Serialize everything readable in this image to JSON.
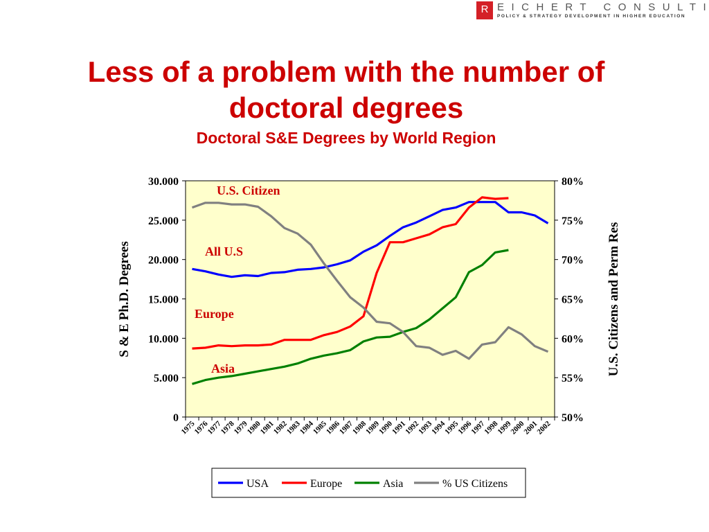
{
  "logo": {
    "initial": "R",
    "name": "EICHERT CONSULTING",
    "tagline": "POLICY & STRATEGY DEVELOPMENT IN HIGHER EDUCATION"
  },
  "slide": {
    "title_line1": "Less of a problem with the number of",
    "title_line2": "doctoral degrees"
  },
  "chart_data": {
    "type": "line",
    "title": "Doctoral S&E Degrees by World Region",
    "ylabel": "S & E Ph.D. Degrees",
    "y2label": "U.S. Citizens and Perm Res",
    "ylim": [
      0,
      30000
    ],
    "y2lim": [
      0.5,
      0.8
    ],
    "yticks": [
      "0",
      "5.000",
      "10.000",
      "15.000",
      "20.000",
      "25.000",
      "30.000"
    ],
    "y2ticks": [
      "50%",
      "55%",
      "60%",
      "65%",
      "70%",
      "75%",
      "80%"
    ],
    "x": [
      "1975",
      "1976",
      "1977",
      "1978",
      "1979",
      "1980",
      "1981",
      "1982",
      "1983",
      "1984",
      "1985",
      "1986",
      "1987",
      "1988",
      "1989",
      "1990",
      "1991",
      "1992",
      "1993",
      "1994",
      "1995",
      "1996",
      "1997",
      "1998",
      "1999",
      "2000",
      "2001",
      "2002"
    ],
    "grid": false,
    "legend": "bottom",
    "series": [
      {
        "name": "USA",
        "color": "#0000ff",
        "axis": "left",
        "values": [
          18800,
          18500,
          18100,
          17800,
          18000,
          17900,
          18300,
          18400,
          18700,
          18800,
          19000,
          19400,
          19900,
          21000,
          21800,
          23000,
          24100,
          24700,
          25500,
          26300,
          26600,
          27300,
          27300,
          27300,
          26000,
          26000,
          25600,
          24600
        ]
      },
      {
        "name": "Europe",
        "color": "#ff0000",
        "axis": "left",
        "values": [
          8700,
          8800,
          9100,
          9000,
          9100,
          9100,
          9200,
          9800,
          9800,
          9800,
          10400,
          10800,
          11500,
          12800,
          18300,
          22200,
          22200,
          22700,
          23200,
          24100,
          24500,
          26600,
          27900,
          27700,
          27800,
          null,
          null,
          null
        ]
      },
      {
        "name": "Asia",
        "color": "#008000",
        "axis": "left",
        "values": [
          4200,
          4700,
          5000,
          5200,
          5500,
          5800,
          6100,
          6400,
          6800,
          7400,
          7800,
          8100,
          8500,
          9600,
          10100,
          10200,
          10800,
          11300,
          12400,
          13800,
          15200,
          18400,
          19300,
          20900,
          21200,
          null,
          null,
          null
        ]
      },
      {
        "name": "% US Citizens",
        "color": "#808080",
        "axis": "right",
        "values": [
          0.766,
          0.772,
          0.772,
          0.77,
          0.77,
          0.767,
          0.755,
          0.74,
          0.733,
          0.719,
          0.695,
          0.673,
          0.652,
          0.639,
          0.621,
          0.619,
          0.608,
          0.59,
          0.588,
          0.579,
          0.584,
          0.574,
          0.592,
          0.595,
          0.614,
          0.605,
          0.59,
          0.583
        ]
      }
    ],
    "annotations": [
      {
        "text": "U.S. Citizen",
        "color": "#cc0000"
      },
      {
        "text": "All U.S",
        "color": "#cc0000"
      },
      {
        "text": "Europe",
        "color": "#cc0000"
      },
      {
        "text": "Asia",
        "color": "#cc0000"
      }
    ],
    "plot_background": "#ffffcc"
  }
}
